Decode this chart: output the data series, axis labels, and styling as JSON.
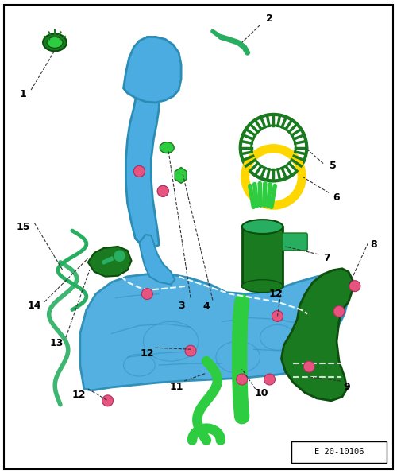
{
  "bg_color": "#ffffff",
  "border_color": "#000000",
  "ref_code": "E 20-10106",
  "fig_width": 5.0,
  "fig_height": 5.96,
  "dpi": 100,
  "colors": {
    "blue": "#4AACE0",
    "blue_dark": "#2B8DB5",
    "blue_mid": "#3B9FD0",
    "green_bright": "#2ECC40",
    "green_dark": "#1a7a20",
    "green_mid": "#27ae60",
    "yellow": "#FFD700",
    "pink": "#E75480",
    "pink_dark": "#b03060",
    "white": "#ffffff",
    "black": "#000000",
    "gray_line": "#333333"
  }
}
